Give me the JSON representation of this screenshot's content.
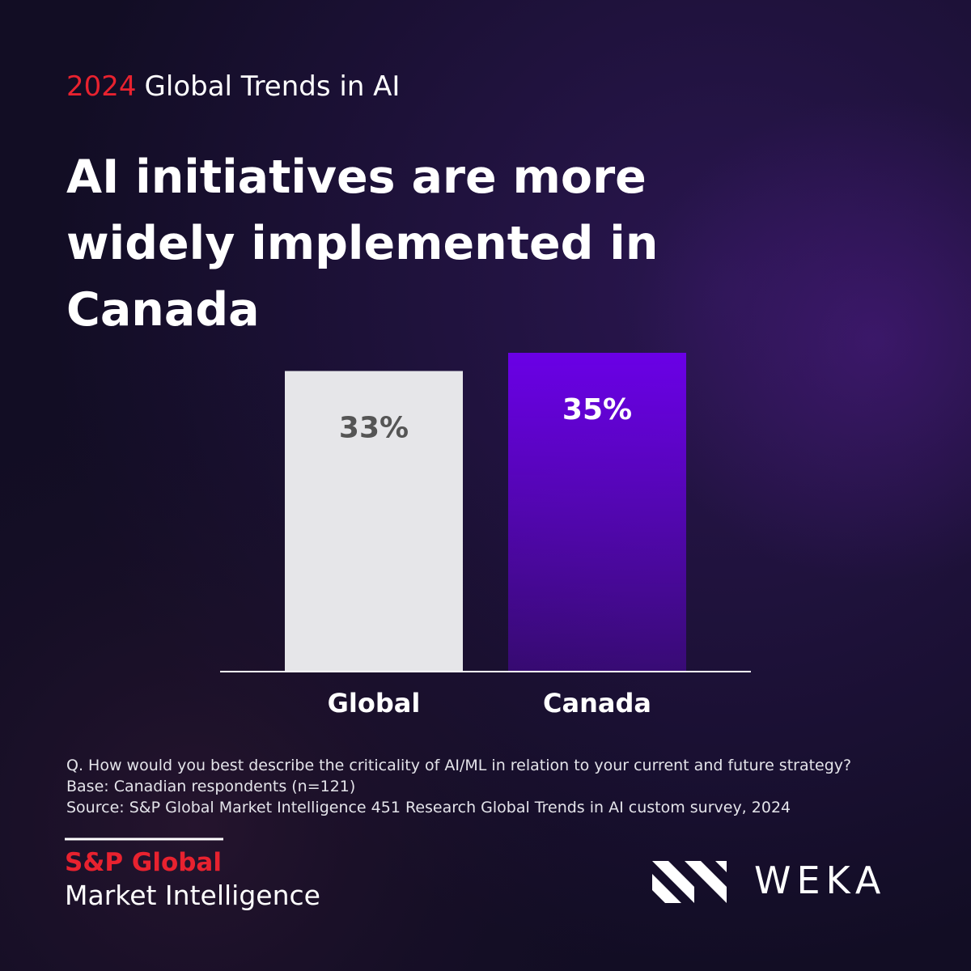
{
  "kicker_year": "2024",
  "kicker": "Global Trends in AI",
  "title_lines": [
    "AI initiatives are more",
    "widely implemented in",
    "Canada"
  ],
  "chart_data": {
    "type": "bar",
    "categories": [
      "Global",
      "Canada"
    ],
    "values": [
      33,
      35
    ],
    "value_labels": [
      "33%",
      "35%"
    ],
    "colors": [
      "#e6e6e9",
      "#6a00e6"
    ],
    "label_colors": [
      "#555555",
      "#ffffff"
    ],
    "ylim": [
      0,
      35
    ]
  },
  "footnotes": [
    "Q. How would you best describe the criticality of AI/ML in relation to your current and future strategy?",
    "Base: Canadian respondents (n=121)",
    "Source: S&P Global Market Intelligence 451 Research Global Trends in AI custom survey, 2024"
  ],
  "logo_sp": "S&P Global",
  "logo_sp_sub": "Market Intelligence",
  "logo_weka": "WEKA"
}
